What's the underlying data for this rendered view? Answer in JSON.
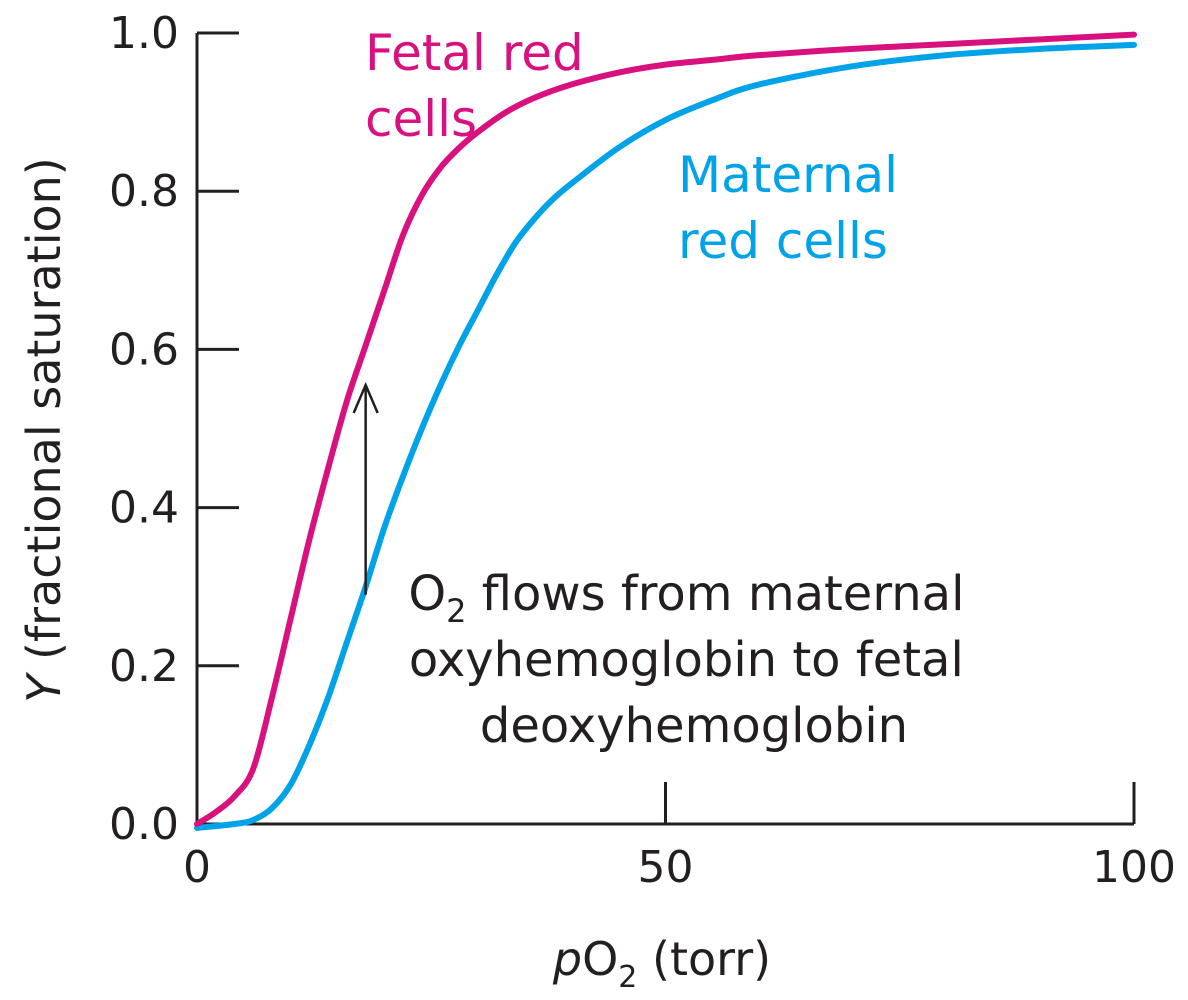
{
  "chart_data": {
    "type": "line",
    "xlabel": {
      "italic": "p",
      "main": "O",
      "sub": "2",
      "rest": " (torr)"
    },
    "ylabel": {
      "italic": "Y",
      "rest": " (fractional saturation)"
    },
    "xlim": [
      0,
      100
    ],
    "ylim": [
      0,
      1.0
    ],
    "x_ticks": [
      0,
      50,
      100
    ],
    "x_tick_labels": [
      "0",
      "50",
      "100"
    ],
    "y_ticks": [
      0,
      0.2,
      0.4,
      0.6,
      0.8,
      1.0
    ],
    "y_tick_labels": [
      "0.0",
      "0.2",
      "0.4",
      "0.6",
      "0.8",
      "1.0"
    ],
    "grid": false,
    "series": [
      {
        "name": "Fetal red cells",
        "label_lines": [
          "Fetal red",
          "cells"
        ],
        "color": "#d9117f",
        "x": [
          0,
          2,
          4,
          6,
          8,
          10,
          12,
          14,
          16,
          18,
          20,
          22,
          24,
          26,
          28,
          30,
          33,
          36,
          40,
          45,
          50,
          55,
          60,
          70,
          80,
          90,
          100
        ],
        "y": [
          0.0,
          0.015,
          0.035,
          0.07,
          0.16,
          0.26,
          0.36,
          0.45,
          0.535,
          0.605,
          0.675,
          0.745,
          0.795,
          0.83,
          0.855,
          0.875,
          0.9,
          0.918,
          0.935,
          0.95,
          0.96,
          0.966,
          0.972,
          0.98,
          0.986,
          0.992,
          0.998
        ]
      },
      {
        "name": "Maternal red cells",
        "label_lines": [
          "Maternal",
          "red cells"
        ],
        "color": "#00a3e8",
        "x": [
          0,
          4,
          6,
          8,
          10,
          12,
          14,
          16,
          18,
          20,
          22,
          24,
          26,
          28,
          30,
          32,
          34,
          36,
          38,
          40,
          45,
          50,
          55,
          60,
          70,
          80,
          90,
          100
        ],
        "y": [
          -0.005,
          0.0,
          0.005,
          0.02,
          0.05,
          0.1,
          0.16,
          0.23,
          0.3,
          0.375,
          0.44,
          0.5,
          0.555,
          0.605,
          0.65,
          0.695,
          0.735,
          0.765,
          0.79,
          0.81,
          0.855,
          0.89,
          0.915,
          0.935,
          0.958,
          0.972,
          0.98,
          0.985
        ]
      }
    ],
    "annotation": {
      "arrow_x": 18,
      "arrow_from_y": 0.29,
      "arrow_to_y": 0.555,
      "lines": [
        {
          "main": "O",
          "sub": "2",
          "rest": " flows from maternal"
        },
        {
          "main": "oxyhemoglobin to fetal"
        },
        {
          "main": "deoxyhemoglobin"
        }
      ]
    }
  }
}
